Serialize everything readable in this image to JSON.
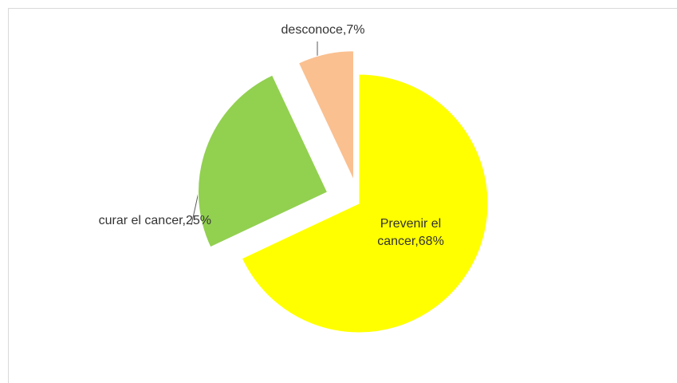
{
  "chart_data": {
    "type": "pie",
    "values": [
      68,
      25,
      7
    ],
    "value_labels": [
      "Prevenir el cancer,68%",
      "curar el cancer,25%",
      "desconoce,7%"
    ],
    "colors": [
      "#FFFF00",
      "#92D050",
      "#FAC090"
    ]
  }
}
